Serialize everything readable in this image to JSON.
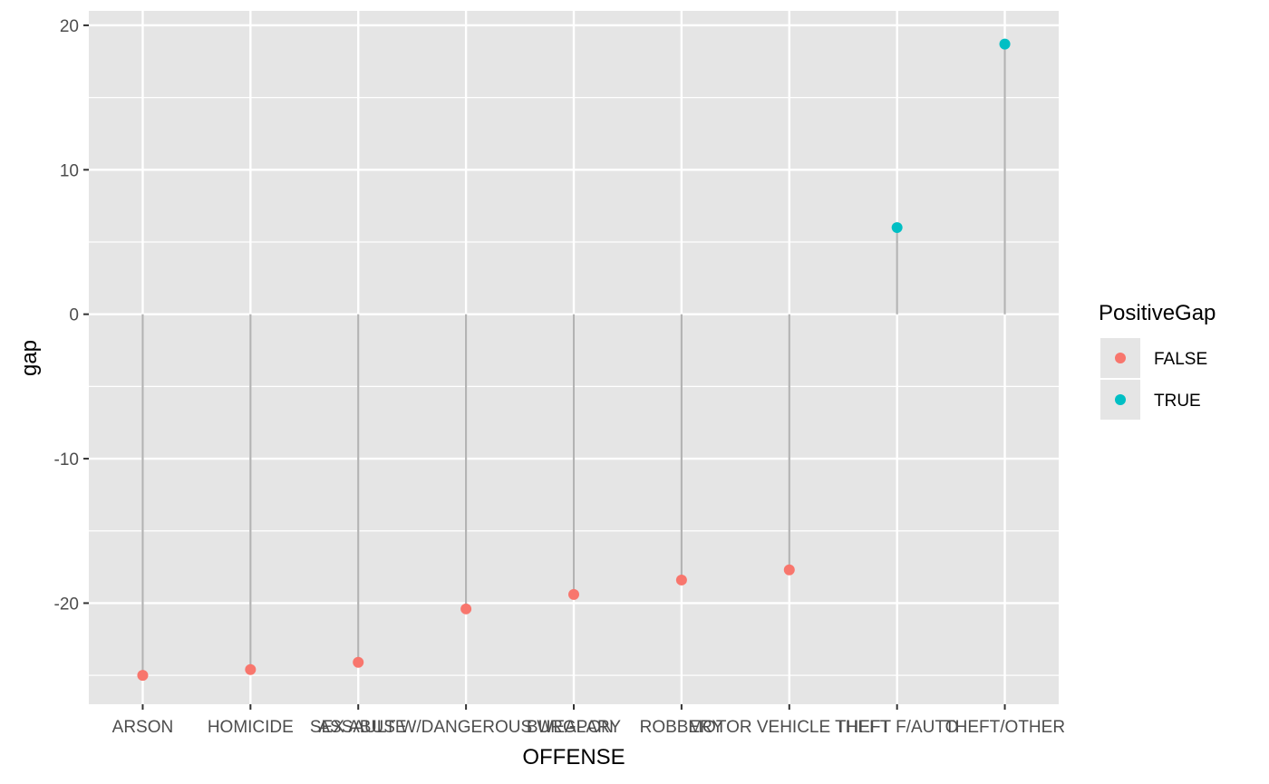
{
  "chart_data": {
    "type": "scatter",
    "style": "lollipop",
    "xlabel": "OFFENSE",
    "ylabel": "gap",
    "ylim": [
      -27,
      21
    ],
    "yticks": [
      -20,
      -10,
      0,
      10,
      20
    ],
    "ytick_labels": [
      "-20",
      "-10",
      "0",
      "10",
      "20"
    ],
    "categories": [
      "ARSON",
      "HOMICIDE",
      "SEX ABUSE",
      "ASSAULT W/DANGEROUS WEAPON",
      "BURGLARY",
      "ROBBERY",
      "MOTOR VEHICLE THEFT",
      "THEFT F/AUTO",
      "THEFT/OTHER"
    ],
    "values": [
      -25.0,
      -24.6,
      -24.1,
      -20.4,
      -19.4,
      -18.4,
      -17.7,
      6.0,
      18.7
    ],
    "groups": [
      "FALSE",
      "FALSE",
      "FALSE",
      "FALSE",
      "FALSE",
      "FALSE",
      "FALSE",
      "TRUE",
      "TRUE"
    ],
    "stem_color": "#b3b3b3",
    "panel_background": "#e5e5e5",
    "grid": true,
    "legend": {
      "title": "PositiveGap",
      "position": "right",
      "entries": [
        {
          "label": "FALSE",
          "color": "#f8766d"
        },
        {
          "label": "TRUE",
          "color": "#00bfc4"
        }
      ]
    }
  }
}
